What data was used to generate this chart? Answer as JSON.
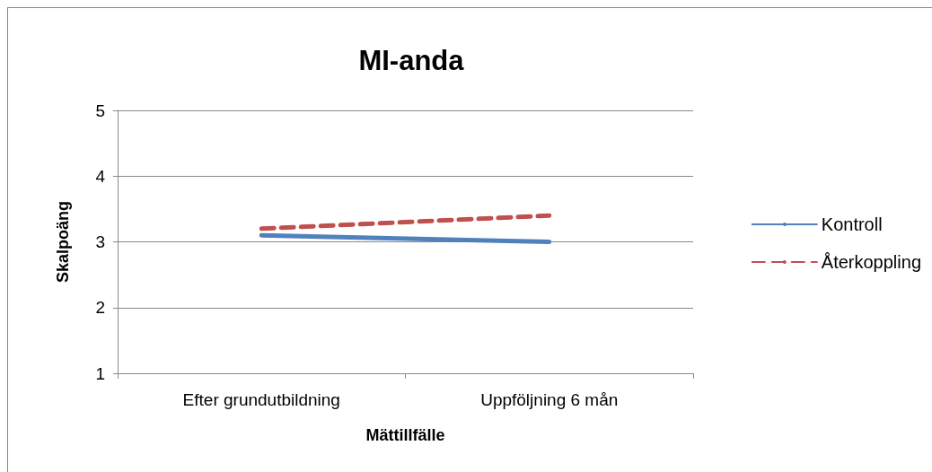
{
  "chart_data": {
    "type": "line",
    "title": "MI-anda",
    "xlabel": "Mättillfälle",
    "ylabel": "Skalpoäng",
    "categories": [
      "Efter grundutbildning",
      "Uppföljning 6 mån"
    ],
    "series": [
      {
        "name": "Kontroll",
        "color": "#4f81bd",
        "values": [
          3.1,
          3.0
        ],
        "line_style": "solid"
      },
      {
        "name": "Återkoppling",
        "color": "#c0504d",
        "values": [
          3.2,
          3.4
        ],
        "line_style": "dashed"
      }
    ],
    "ylim": [
      1,
      5
    ],
    "yticks": [
      1,
      2,
      3,
      4,
      5
    ],
    "grid": "y",
    "legend": "right",
    "marker": "none"
  }
}
